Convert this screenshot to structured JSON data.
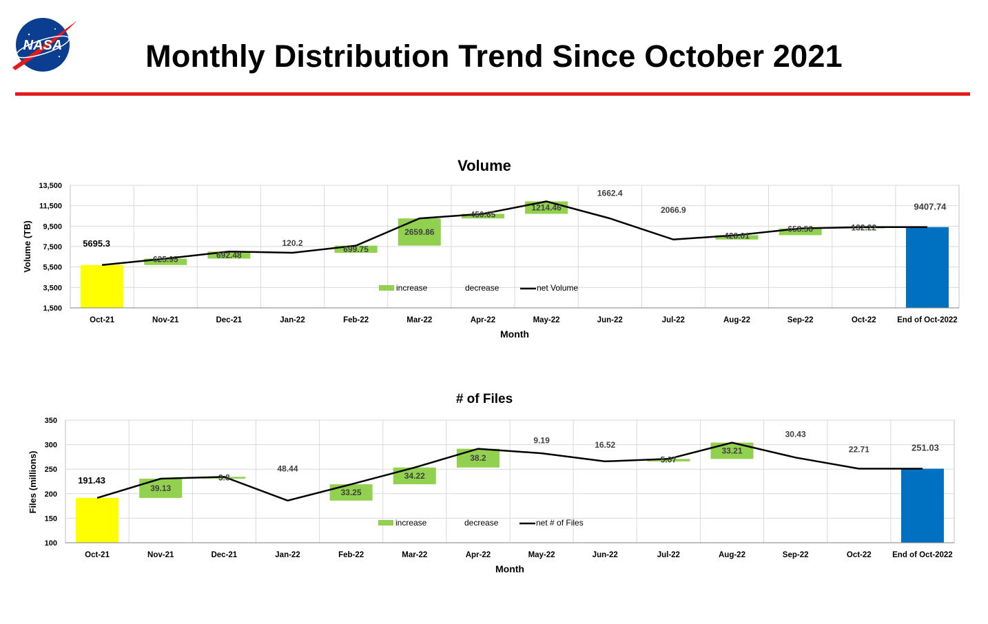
{
  "slide": {
    "title": "Monthly Distribution Trend Since October 2021",
    "logo_text": "NASA"
  },
  "colors": {
    "rule": "#e31b1b",
    "start_bar": "#ffff00",
    "end_bar": "#0070c0",
    "increase": "#92d050",
    "net_line": "#000000",
    "grid": "#d9d9d9"
  },
  "chart_data": [
    {
      "type": "bar",
      "subtype": "waterfall",
      "title": "Volume",
      "xlabel": "Month",
      "ylabel": "Volume (TB)",
      "ylim": [
        1500,
        13500
      ],
      "yticks": [
        1500,
        3500,
        5500,
        7500,
        9500,
        11500,
        13500
      ],
      "ytick_labels": [
        "1,500",
        "3,500",
        "5,500",
        "7,500",
        "9,500",
        "11,500",
        "13,500"
      ],
      "categories": [
        "Oct-21",
        "Nov-21",
        "Dec-21",
        "Jan-22",
        "Feb-22",
        "Mar-22",
        "Apr-22",
        "May-22",
        "Jun-22",
        "Jul-22",
        "Aug-22",
        "Sep-22",
        "Oct-22",
        "End of Oct-2022"
      ],
      "start": {
        "category": "Oct-21",
        "value": 5695.3,
        "label": "5695.3"
      },
      "end": {
        "category": "End of Oct-2022",
        "value": 9407.74,
        "label": "9407.74"
      },
      "changes": [
        {
          "category": "Nov-21",
          "value": 625.95,
          "label": "625.95",
          "direction": "increase"
        },
        {
          "category": "Dec-21",
          "value": 692.48,
          "label": "692.48",
          "direction": "increase"
        },
        {
          "category": "Jan-22",
          "value": -120.2,
          "label": "120.2",
          "direction": "decrease"
        },
        {
          "category": "Feb-22",
          "value": 699.75,
          "label": "699.75",
          "direction": "increase"
        },
        {
          "category": "Mar-22",
          "value": 2659.86,
          "label": "2659.86",
          "direction": "increase"
        },
        {
          "category": "Apr-22",
          "value": 450.65,
          "label": "450.65",
          "direction": "increase"
        },
        {
          "category": "May-22",
          "value": 1214.46,
          "label": "1214.46",
          "direction": "increase"
        },
        {
          "category": "Jun-22",
          "value": -1662.4,
          "label": "1662.4",
          "direction": "decrease"
        },
        {
          "category": "Jul-22",
          "value": -2066.9,
          "label": "2066.9",
          "direction": "decrease"
        },
        {
          "category": "Aug-22",
          "value": 428.01,
          "label": "428.01",
          "direction": "increase"
        },
        {
          "category": "Sep-22",
          "value": 658.56,
          "label": "658.56",
          "direction": "increase"
        },
        {
          "category": "Oct-22",
          "value": 132.22,
          "label": "132.22",
          "direction": "increase"
        }
      ],
      "net_series": {
        "name": "net Volume",
        "values": [
          5695.3,
          6321.25,
          7013.73,
          6893.53,
          7593.28,
          10253.14,
          10703.79,
          11918.25,
          10255.85,
          8188.95,
          8616.96,
          9275.52,
          9407.74,
          9407.74
        ]
      },
      "legend": {
        "position": "bottom-center-inside",
        "entries": [
          "increase",
          "decrease",
          "net Volume"
        ]
      },
      "grid": true
    },
    {
      "type": "bar",
      "subtype": "waterfall",
      "title": "# of Files",
      "xlabel": "Month",
      "ylabel": "Files (millions)",
      "ylim": [
        100,
        350
      ],
      "yticks": [
        100,
        150,
        200,
        250,
        300,
        350
      ],
      "ytick_labels": [
        "100",
        "150",
        "200",
        "250",
        "300",
        "350"
      ],
      "categories": [
        "Oct-21",
        "Nov-21",
        "Dec-21",
        "Jan-22",
        "Feb-22",
        "Mar-22",
        "Apr-22",
        "May-22",
        "Jun-22",
        "Jul-22",
        "Aug-22",
        "Sep-22",
        "Oct-22",
        "End of Oct-2022"
      ],
      "start": {
        "category": "Oct-21",
        "value": 191.43,
        "label": "191.43"
      },
      "end": {
        "category": "End of Oct-2022",
        "value": 251.03,
        "label": "251.03"
      },
      "changes": [
        {
          "category": "Nov-21",
          "value": 39.13,
          "label": "39.13",
          "direction": "increase"
        },
        {
          "category": "Dec-21",
          "value": 3.8,
          "label": "3.8",
          "direction": "increase"
        },
        {
          "category": "Jan-22",
          "value": -48.44,
          "label": "48.44",
          "direction": "decrease"
        },
        {
          "category": "Feb-22",
          "value": 33.25,
          "label": "33.25",
          "direction": "increase"
        },
        {
          "category": "Mar-22",
          "value": 34.22,
          "label": "34.22",
          "direction": "increase"
        },
        {
          "category": "Apr-22",
          "value": 38.2,
          "label": "38.2",
          "direction": "increase"
        },
        {
          "category": "May-22",
          "value": -9.19,
          "label": "9.19",
          "direction": "decrease"
        },
        {
          "category": "Jun-22",
          "value": -16.52,
          "label": "16.52",
          "direction": "decrease"
        },
        {
          "category": "Jul-22",
          "value": 5.07,
          "label": "5.07",
          "direction": "increase"
        },
        {
          "category": "Aug-22",
          "value": 33.21,
          "label": "33.21",
          "direction": "increase"
        },
        {
          "category": "Sep-22",
          "value": -30.43,
          "label": "30.43",
          "direction": "decrease"
        },
        {
          "category": "Oct-22",
          "value": -22.71,
          "label": "22.71",
          "direction": "decrease"
        }
      ],
      "net_series": {
        "name": "net # of Files",
        "values": [
          191.43,
          230.56,
          234.36,
          185.92,
          219.17,
          253.39,
          291.59,
          282.4,
          265.88,
          270.95,
          304.16,
          273.73,
          251.02,
          251.03
        ]
      },
      "legend": {
        "position": "bottom-center-inside",
        "entries": [
          "increase",
          "decrease",
          "net # of Files"
        ]
      },
      "grid": true
    }
  ]
}
